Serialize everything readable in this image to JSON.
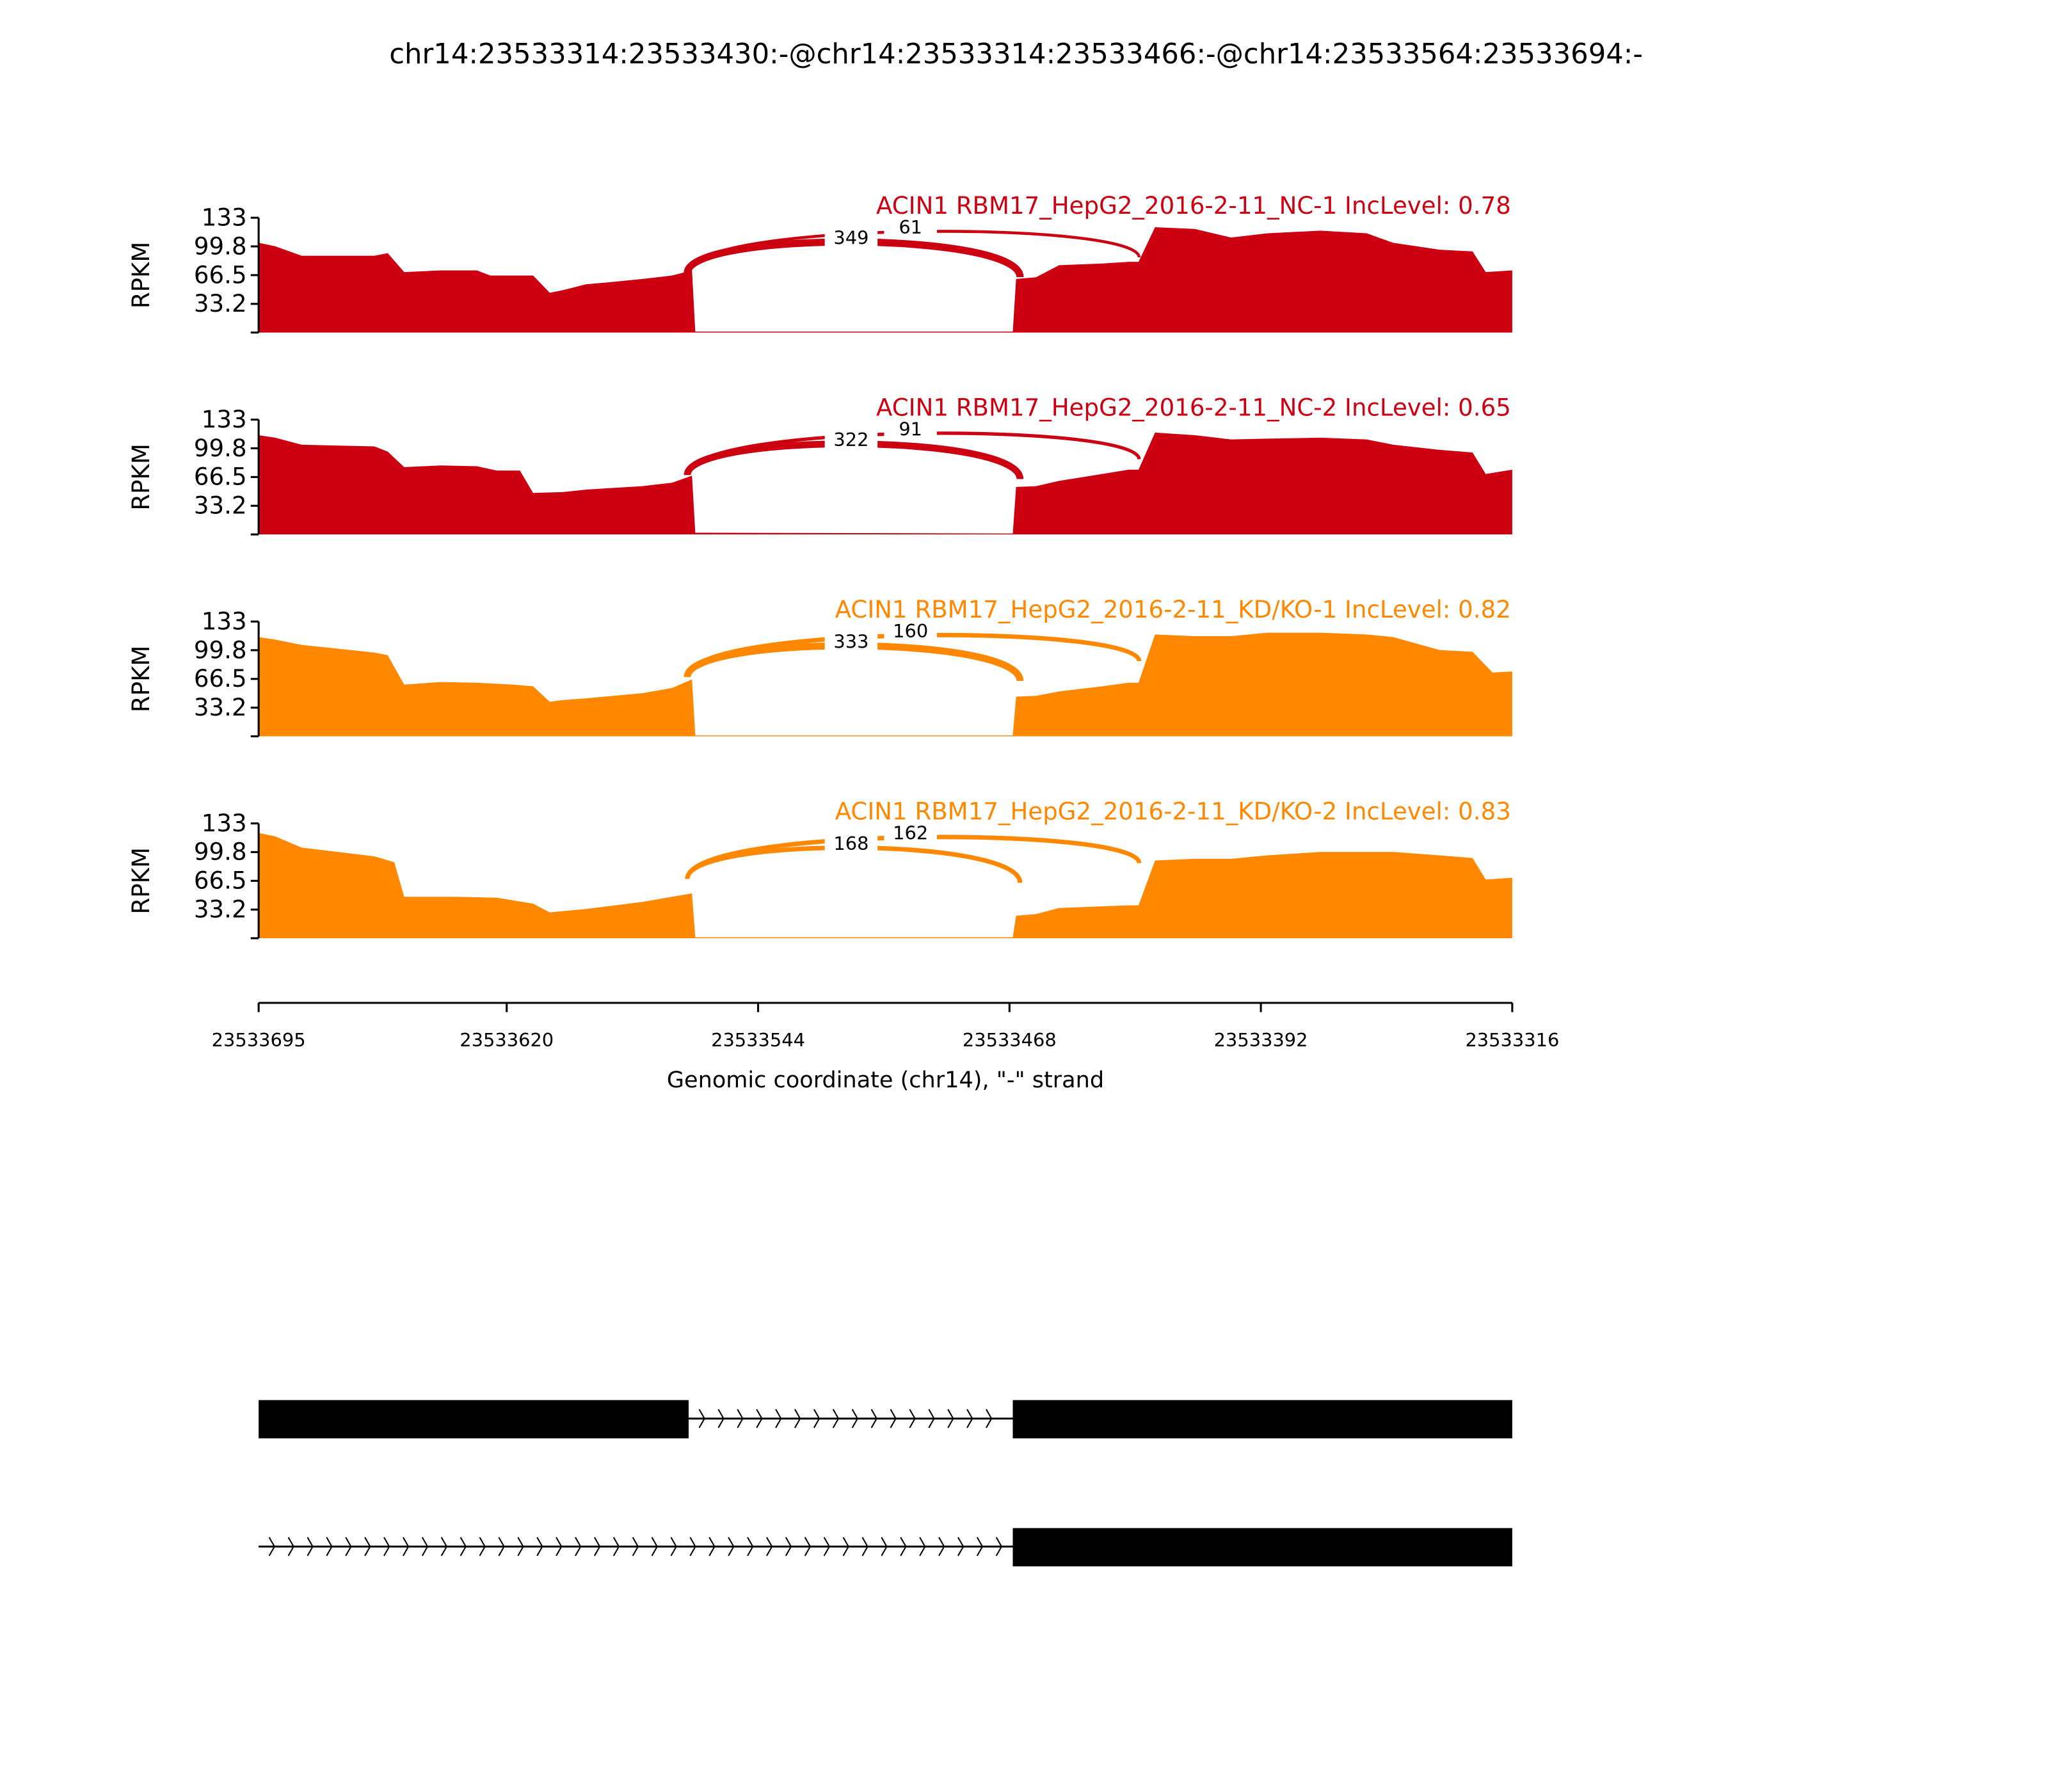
{
  "title": "chr14:23533314:23533430:-@chr14:23533314:23533466:-@chr14:23533564:23533694:-",
  "chart_data": {
    "type": "area",
    "title": "chr14:23533314:23533430:-@chr14:23533314:23533466:-@chr14:23533564:23533694:-",
    "xlabel": "Genomic coordinate (chr14), \"-\" strand",
    "ylabel": "RPKM",
    "xlim": [
      23533695,
      23533316
    ],
    "ylim": [
      0,
      133
    ],
    "yticks": [
      "133",
      "99.8",
      "66.5",
      "33.2"
    ],
    "ytick_values": [
      133,
      99.8,
      66.5,
      33.2
    ],
    "xticks": [
      "23533695",
      "23533620",
      "23533544",
      "23533468",
      "23533392",
      "23533316"
    ],
    "xtick_values": [
      23533695,
      23533620,
      23533544,
      23533468,
      23533392,
      23533316
    ],
    "series": [
      {
        "name": "ACIN1 RBM17_HepG2_2016-2-11_NC-1 IncLevel: 0.78",
        "color": "#cc0011",
        "junctions": [
          {
            "from": 23533563,
            "to": 23533466,
            "count": "349"
          },
          {
            "from": 23533563,
            "to": 23533430,
            "count": "61"
          }
        ],
        "coverage": [
          [
            23533695,
            104
          ],
          [
            23533690,
            100
          ],
          [
            23533682,
            89
          ],
          [
            23533660,
            89
          ],
          [
            23533656,
            92
          ],
          [
            23533651,
            70
          ],
          [
            23533640,
            72
          ],
          [
            23533629,
            72
          ],
          [
            23533625,
            66
          ],
          [
            23533612,
            66
          ],
          [
            23533607,
            46
          ],
          [
            23533603,
            49
          ],
          [
            23533596,
            56
          ],
          [
            23533590,
            58
          ],
          [
            23533579,
            62
          ],
          [
            23533570,
            66
          ],
          [
            23533564,
            72
          ],
          [
            23533563,
            1
          ],
          [
            23533467,
            1
          ],
          [
            23533466,
            62
          ],
          [
            23533460,
            64
          ],
          [
            23533453,
            78
          ],
          [
            23533440,
            80
          ],
          [
            23533432,
            82
          ],
          [
            23533429,
            82
          ],
          [
            23533424,
            122
          ],
          [
            23533412,
            120
          ],
          [
            23533401,
            110
          ],
          [
            23533390,
            115
          ],
          [
            23533374,
            118
          ],
          [
            23533360,
            115
          ],
          [
            23533352,
            104
          ],
          [
            23533338,
            96
          ],
          [
            23533328,
            94
          ],
          [
            23533324,
            70
          ],
          [
            23533316,
            72
          ]
        ]
      },
      {
        "name": "ACIN1 RBM17_HepG2_2016-2-11_NC-2 IncLevel: 0.65",
        "color": "#cc0011",
        "junctions": [
          {
            "from": 23533563,
            "to": 23533466,
            "count": "322"
          },
          {
            "from": 23533563,
            "to": 23533430,
            "count": "91"
          }
        ],
        "coverage": [
          [
            23533695,
            115
          ],
          [
            23533690,
            112
          ],
          [
            23533682,
            104
          ],
          [
            23533660,
            102
          ],
          [
            23533656,
            96
          ],
          [
            23533651,
            78
          ],
          [
            23533640,
            80
          ],
          [
            23533629,
            79
          ],
          [
            23533623,
            74
          ],
          [
            23533616,
            74
          ],
          [
            23533612,
            48
          ],
          [
            23533603,
            49
          ],
          [
            23533596,
            52
          ],
          [
            23533579,
            56
          ],
          [
            23533570,
            60
          ],
          [
            23533564,
            68
          ],
          [
            23533563,
            2
          ],
          [
            23533467,
            1
          ],
          [
            23533466,
            55
          ],
          [
            23533460,
            56
          ],
          [
            23533453,
            62
          ],
          [
            23533440,
            70
          ],
          [
            23533432,
            75
          ],
          [
            23533429,
            75
          ],
          [
            23533424,
            118
          ],
          [
            23533412,
            115
          ],
          [
            23533401,
            110
          ],
          [
            23533390,
            111
          ],
          [
            23533374,
            112
          ],
          [
            23533360,
            110
          ],
          [
            23533352,
            104
          ],
          [
            23533338,
            98
          ],
          [
            23533328,
            95
          ],
          [
            23533324,
            70
          ],
          [
            23533316,
            75
          ]
        ]
      },
      {
        "name": "ACIN1 RBM17_HepG2_2016-2-11_KD/KO-1 IncLevel: 0.82",
        "color": "#ff8800",
        "junctions": [
          {
            "from": 23533563,
            "to": 23533466,
            "count": "333"
          },
          {
            "from": 23533563,
            "to": 23533430,
            "count": "160"
          }
        ],
        "coverage": [
          [
            23533695,
            115
          ],
          [
            23533690,
            112
          ],
          [
            23533682,
            106
          ],
          [
            23533660,
            97
          ],
          [
            23533656,
            94
          ],
          [
            23533651,
            60
          ],
          [
            23533640,
            63
          ],
          [
            23533629,
            62
          ],
          [
            23533618,
            60
          ],
          [
            23533612,
            58
          ],
          [
            23533607,
            40
          ],
          [
            23533603,
            42
          ],
          [
            23533596,
            44
          ],
          [
            23533579,
            50
          ],
          [
            23533570,
            56
          ],
          [
            23533564,
            66
          ],
          [
            23533563,
            1
          ],
          [
            23533467,
            1
          ],
          [
            23533466,
            46
          ],
          [
            23533460,
            47
          ],
          [
            23533453,
            52
          ],
          [
            23533440,
            58
          ],
          [
            23533432,
            62
          ],
          [
            23533429,
            62
          ],
          [
            23533424,
            118
          ],
          [
            23533412,
            116
          ],
          [
            23533401,
            116
          ],
          [
            23533390,
            120
          ],
          [
            23533374,
            120
          ],
          [
            23533360,
            118
          ],
          [
            23533352,
            115
          ],
          [
            23533338,
            100
          ],
          [
            23533328,
            98
          ],
          [
            23533322,
            74
          ],
          [
            23533316,
            75
          ]
        ]
      },
      {
        "name": "ACIN1 RBM17_HepG2_2016-2-11_KD/KO-2 IncLevel: 0.83",
        "color": "#ff8800",
        "junctions": [
          {
            "from": 23533563,
            "to": 23533466,
            "count": "168"
          },
          {
            "from": 23533563,
            "to": 23533430,
            "count": "162"
          }
        ],
        "coverage": [
          [
            23533695,
            122
          ],
          [
            23533690,
            118
          ],
          [
            23533682,
            105
          ],
          [
            23533660,
            95
          ],
          [
            23533654,
            88
          ],
          [
            23533651,
            48
          ],
          [
            23533635,
            48
          ],
          [
            23533623,
            47
          ],
          [
            23533612,
            40
          ],
          [
            23533607,
            30
          ],
          [
            23533596,
            34
          ],
          [
            23533579,
            42
          ],
          [
            23533570,
            48
          ],
          [
            23533564,
            52
          ],
          [
            23533563,
            1
          ],
          [
            23533467,
            1
          ],
          [
            23533466,
            26
          ],
          [
            23533460,
            28
          ],
          [
            23533453,
            35
          ],
          [
            23533440,
            37
          ],
          [
            23533432,
            38
          ],
          [
            23533429,
            38
          ],
          [
            23533424,
            90
          ],
          [
            23533412,
            92
          ],
          [
            23533401,
            92
          ],
          [
            23533390,
            96
          ],
          [
            23533374,
            100
          ],
          [
            23533360,
            100
          ],
          [
            23533352,
            100
          ],
          [
            23533338,
            96
          ],
          [
            23533328,
            93
          ],
          [
            23533324,
            68
          ],
          [
            23533316,
            70
          ]
        ]
      }
    ],
    "gene_models": [
      {
        "exons": [
          [
            23533695,
            23533565
          ],
          [
            23533467,
            23533316
          ]
        ]
      },
      {
        "intron_start": 23533695,
        "exons": [
          [
            23533467,
            23533316
          ]
        ]
      }
    ]
  }
}
